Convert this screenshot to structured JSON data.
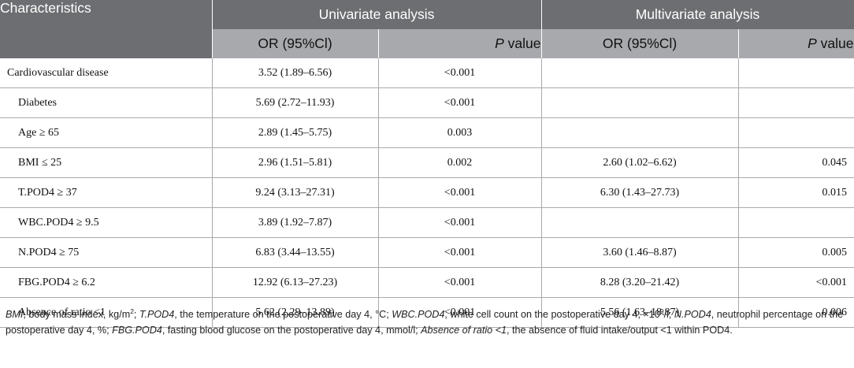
{
  "table": {
    "header_row1": {
      "characteristics": "Characteristics",
      "univariate": "Univariate analysis",
      "multivariate": "Multivariate analysis"
    },
    "header_row2": {
      "uni_or": "OR (95%Cl)",
      "uni_p_italic": "P",
      "uni_p_rest": " value",
      "multi_or": "OR (95%Cl)",
      "multi_p_italic": "P",
      "multi_p_rest": " value"
    },
    "rows": [
      {
        "name": "Cardiovascular disease",
        "uni_or": "3.52 (1.89–6.56)",
        "uni_p": "<0.001",
        "multi_or": "",
        "multi_p": ""
      },
      {
        "name": "Diabetes",
        "uni_or": "5.69 (2.72–11.93)",
        "uni_p": "<0.001",
        "multi_or": "",
        "multi_p": ""
      },
      {
        "name": "Age ≥ 65",
        "uni_or": "2.89 (1.45–5.75)",
        "uni_p": "0.003",
        "multi_or": "",
        "multi_p": ""
      },
      {
        "name": "BMI ≤ 25",
        "uni_or": "2.96 (1.51–5.81)",
        "uni_p": "0.002",
        "multi_or": "2.60 (1.02–6.62)",
        "multi_p": "0.045"
      },
      {
        "name": "T.POD4 ≥ 37",
        "uni_or": "9.24 (3.13–27.31)",
        "uni_p": "<0.001",
        "multi_or": "6.30 (1.43–27.73)",
        "multi_p": "0.015"
      },
      {
        "name": "WBC.POD4 ≥ 9.5",
        "uni_or": "3.89 (1.92–7.87)",
        "uni_p": "<0.001",
        "multi_or": "",
        "multi_p": ""
      },
      {
        "name": "N.POD4 ≥ 75",
        "uni_or": "6.83 (3.44–13.55)",
        "uni_p": "<0.001",
        "multi_or": "3.60 (1.46–8.87)",
        "multi_p": "0.005"
      },
      {
        "name": "FBG.POD4 ≥ 6.2",
        "uni_or": "12.92 (6.13–27.23)",
        "uni_p": "<0.001",
        "multi_or": "8.28 (3.20–21.42)",
        "multi_p": "<0.001"
      },
      {
        "name": "Absence of ratio <1",
        "uni_or": "5.62 (2.29–13.89)",
        "uni_p": "<0.001",
        "multi_or": "5.56 (1.63–18.87)",
        "multi_p": "0.006"
      }
    ]
  },
  "footnote": {
    "bmi_abbr": "BMI",
    "bmi_text": ", body mass index, kg/m",
    "bmi_sup": "2",
    "sep1": "; ",
    "t_abbr": "T.POD4",
    "t_text": ", the temperature on the postoperative day 4, °C; ",
    "wbc_abbr": "WBC.POD4",
    "wbc_text": ", white cell count on the postoperative day 4, ×10",
    "wbc_sup": "9",
    "wbc_unit": "/l; ",
    "n_abbr": "N.POD4",
    "n_text": ", neutrophil percentage on the postoperative day 4, %; ",
    "fbg_abbr": "FBG.POD4",
    "fbg_text": ", fasting blood glucose on the postoperative day 4, mmol/l; ",
    "abs_abbr": "Absence of ratio <1",
    "abs_text": ", the absence of fluid intake/output <1 within POD4."
  }
}
